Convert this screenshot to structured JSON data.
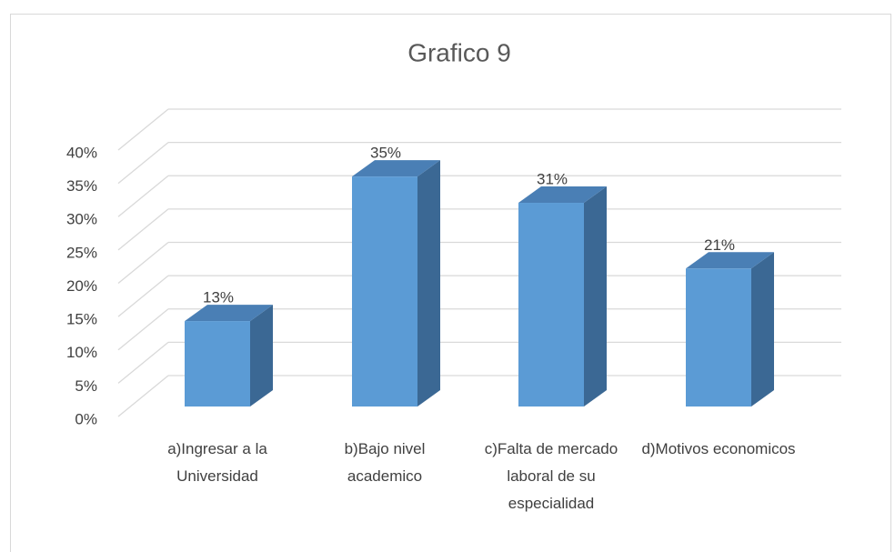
{
  "chart_data": {
    "type": "bar3d",
    "title": "Grafico 9",
    "categories": [
      "a)Ingresar a la Universidad",
      "b)Bajo nivel academico",
      "c)Falta de mercado laboral de su especialidad",
      "d)Motivos economicos"
    ],
    "values": [
      13,
      35,
      31,
      21
    ],
    "value_labels": [
      "13%",
      "35%",
      "31%",
      "21%"
    ],
    "color": "#5b9bd5",
    "ylim": [
      0,
      40
    ],
    "yticks": [
      {
        "value": 0,
        "label": "0%"
      },
      {
        "value": 5,
        "label": "5%"
      },
      {
        "value": 10,
        "label": "10%"
      },
      {
        "value": 15,
        "label": "15%"
      },
      {
        "value": 20,
        "label": "20%"
      },
      {
        "value": 25,
        "label": "25%"
      },
      {
        "value": 30,
        "label": "30%"
      },
      {
        "value": 35,
        "label": "35%"
      },
      {
        "value": 40,
        "label": "40%"
      }
    ],
    "grid": true
  }
}
